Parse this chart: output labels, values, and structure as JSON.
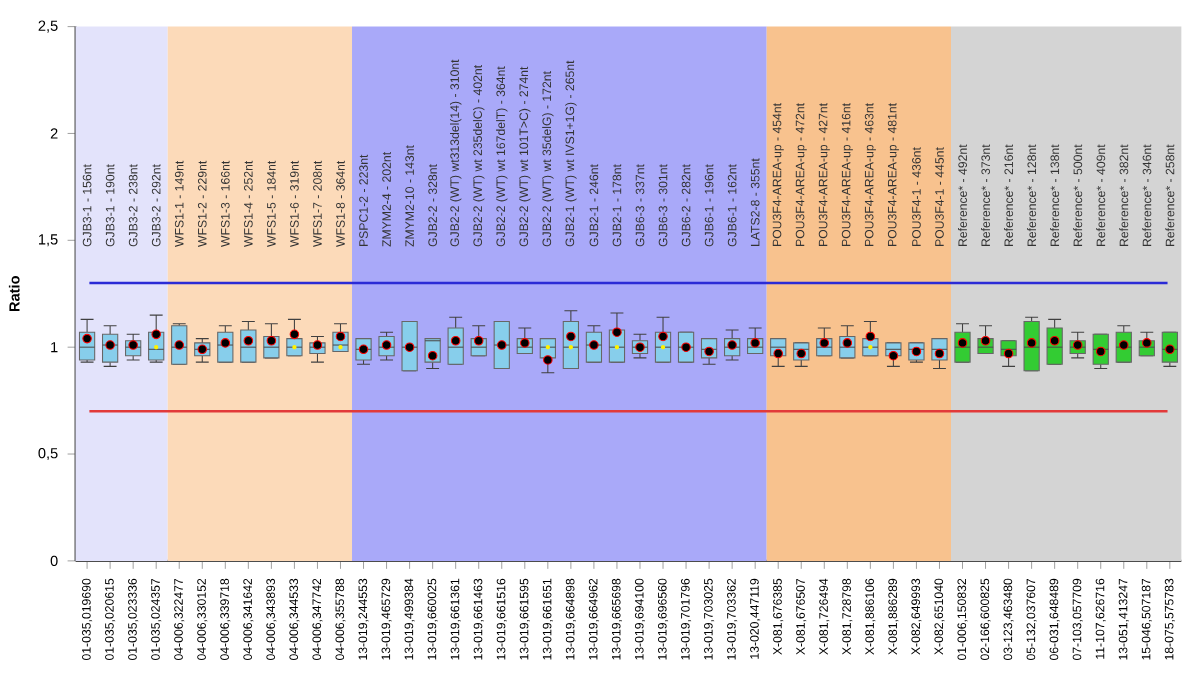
{
  "chart_data": {
    "type": "box",
    "ylabel": "Ratio",
    "categories": [
      "01-035,019690",
      "01-035,020615",
      "01-035,023336",
      "01-035,024357",
      "04-006,322477",
      "04-006,330152",
      "04-006,339718",
      "04-006,341642",
      "04-006,343893",
      "04-006,344533",
      "04-006,347742",
      "04-006,355788",
      "13-019,244553",
      "13-019,465729",
      "13-019,499384",
      "13-019,660025",
      "13-019,661361",
      "13-019,661463",
      "13-019,661516",
      "13-019,661595",
      "13-019,661651",
      "13-019,664898",
      "13-019,664962",
      "13-019,665698",
      "13-019,694100",
      "13-019,696560",
      "13-019,701796",
      "13-019,703025",
      "13-019,703362",
      "13-020,447119",
      "X-081,676385",
      "X-081,676507",
      "X-081,726494",
      "X-081,728798",
      "X-081,886106",
      "X-081,886289",
      "X-082,649993",
      "X-082,651040",
      "01-006,150832",
      "02-166,600825",
      "03-123,463480",
      "05-132,037607",
      "06-031,648489",
      "07-103,057709",
      "11-107,626716",
      "13-051,413247",
      "15-046,507187",
      "18-075,575783"
    ],
    "boxes": [
      {
        "low": 0.93,
        "q1": 0.94,
        "median": 1.0,
        "q3": 1.07,
        "high": 1.13
      },
      {
        "low": 0.91,
        "q1": 0.93,
        "median": 1.01,
        "q3": 1.06,
        "high": 1.1
      },
      {
        "low": 0.94,
        "q1": 0.96,
        "median": 1.0,
        "q3": 1.03,
        "high": 1.06
      },
      {
        "low": 0.93,
        "q1": 0.94,
        "median": 0.99,
        "q3": 1.07,
        "high": 1.15,
        "mean": 1.0
      },
      {
        "low": 0.92,
        "q1": 0.92,
        "median": 1.0,
        "q3": 1.1,
        "high": 1.11
      },
      {
        "low": 0.93,
        "q1": 0.96,
        "median": 0.99,
        "q3": 1.02,
        "high": 1.04
      },
      {
        "low": 0.93,
        "q1": 0.93,
        "median": 1.01,
        "q3": 1.07,
        "high": 1.1
      },
      {
        "low": 0.93,
        "q1": 0.93,
        "median": 1.0,
        "q3": 1.08,
        "high": 1.12
      },
      {
        "low": 0.95,
        "q1": 0.95,
        "median": 1.0,
        "q3": 1.05,
        "high": 1.11
      },
      {
        "low": 0.96,
        "q1": 0.96,
        "median": 1.0,
        "q3": 1.04,
        "high": 1.13,
        "mean": 1.0
      },
      {
        "low": 0.93,
        "q1": 0.97,
        "median": 1.0,
        "q3": 1.02,
        "high": 1.05
      },
      {
        "low": 0.98,
        "q1": 0.98,
        "median": 1.01,
        "q3": 1.07,
        "high": 1.11,
        "mean": 1.0
      },
      {
        "low": 0.92,
        "q1": 0.94,
        "median": 0.99,
        "q3": 1.04,
        "high": 1.04
      },
      {
        "low": 0.94,
        "q1": 0.96,
        "median": 1.0,
        "q3": 1.05,
        "high": 1.07
      },
      {
        "low": 0.89,
        "q1": 0.89,
        "median": 1.0,
        "q3": 1.12,
        "high": 1.12
      },
      {
        "low": 0.9,
        "q1": 0.93,
        "median": 1.03,
        "q3": 1.04,
        "high": 1.04
      },
      {
        "low": 0.92,
        "q1": 0.92,
        "median": 1.0,
        "q3": 1.09,
        "high": 1.14
      },
      {
        "low": 0.96,
        "q1": 0.96,
        "median": 1.0,
        "q3": 1.04,
        "high": 1.1
      },
      {
        "low": 0.9,
        "q1": 0.9,
        "median": 1.01,
        "q3": 1.12,
        "high": 1.12
      },
      {
        "low": 0.97,
        "q1": 0.97,
        "median": 1.0,
        "q3": 1.04,
        "high": 1.09
      },
      {
        "low": 0.88,
        "q1": 0.95,
        "median": 1.0,
        "q3": 1.04,
        "high": 1.04,
        "mean": 1.0
      },
      {
        "low": 0.9,
        "q1": 0.9,
        "median": 1.0,
        "q3": 1.12,
        "high": 1.17,
        "mean": 1.0
      },
      {
        "low": 0.93,
        "q1": 0.93,
        "median": 1.01,
        "q3": 1.07,
        "high": 1.1
      },
      {
        "low": 0.93,
        "q1": 0.93,
        "median": 1.0,
        "q3": 1.08,
        "high": 1.16,
        "mean": 1.0
      },
      {
        "low": 0.95,
        "q1": 0.97,
        "median": 1.0,
        "q3": 1.03,
        "high": 1.06
      },
      {
        "low": 0.93,
        "q1": 0.93,
        "median": 1.0,
        "q3": 1.07,
        "high": 1.14,
        "mean": 1.0
      },
      {
        "low": 0.93,
        "q1": 0.93,
        "median": 1.0,
        "q3": 1.07,
        "high": 1.07
      },
      {
        "low": 0.92,
        "q1": 0.95,
        "median": 0.99,
        "q3": 1.04,
        "high": 1.04
      },
      {
        "low": 0.94,
        "q1": 0.96,
        "median": 1.0,
        "q3": 1.04,
        "high": 1.08
      },
      {
        "low": 0.97,
        "q1": 0.97,
        "median": 1.0,
        "q3": 1.04,
        "high": 1.09
      },
      {
        "low": 0.91,
        "q1": 0.96,
        "median": 1.0,
        "q3": 1.04,
        "high": 1.04
      },
      {
        "low": 0.91,
        "q1": 0.94,
        "median": 0.99,
        "q3": 1.02,
        "high": 1.02
      },
      {
        "low": 0.96,
        "q1": 0.96,
        "median": 1.0,
        "q3": 1.04,
        "high": 1.09
      },
      {
        "low": 0.95,
        "q1": 0.95,
        "median": 1.0,
        "q3": 1.05,
        "high": 1.1
      },
      {
        "low": 0.96,
        "q1": 0.96,
        "median": 1.0,
        "q3": 1.04,
        "high": 1.12,
        "mean": 1.0
      },
      {
        "low": 0.91,
        "q1": 0.96,
        "median": 0.99,
        "q3": 1.02,
        "high": 1.02
      },
      {
        "low": 0.93,
        "q1": 0.94,
        "median": 0.99,
        "q3": 1.02,
        "high": 1.02
      },
      {
        "low": 0.9,
        "q1": 0.94,
        "median": 0.99,
        "q3": 1.04,
        "high": 1.04
      },
      {
        "low": 0.93,
        "q1": 0.93,
        "median": 1.0,
        "q3": 1.07,
        "high": 1.11
      },
      {
        "low": 0.97,
        "q1": 0.97,
        "median": 1.0,
        "q3": 1.04,
        "high": 1.1
      },
      {
        "low": 0.91,
        "q1": 0.96,
        "median": 0.99,
        "q3": 1.03,
        "high": 1.03
      },
      {
        "low": 0.89,
        "q1": 0.89,
        "median": 1.0,
        "q3": 1.12,
        "high": 1.14
      },
      {
        "low": 0.92,
        "q1": 0.92,
        "median": 1.0,
        "q3": 1.09,
        "high": 1.13
      },
      {
        "low": 0.95,
        "q1": 0.97,
        "median": 1.0,
        "q3": 1.03,
        "high": 1.07
      },
      {
        "low": 0.9,
        "q1": 0.92,
        "median": 0.99,
        "q3": 1.06,
        "high": 1.06
      },
      {
        "low": 0.93,
        "q1": 0.93,
        "median": 1.0,
        "q3": 1.07,
        "high": 1.1
      },
      {
        "low": 0.96,
        "q1": 0.96,
        "median": 1.0,
        "q3": 1.03,
        "high": 1.07
      },
      {
        "low": 0.91,
        "q1": 0.93,
        "median": 0.99,
        "q3": 1.07,
        "high": 1.07
      }
    ],
    "colors": [
      "#87ceeb",
      "#87ceeb",
      "#87ceeb",
      "#87ceeb",
      "#87ceeb",
      "#87ceeb",
      "#87ceeb",
      "#87ceeb",
      "#87ceeb",
      "#87ceeb",
      "#87ceeb",
      "#87ceeb",
      "#87ceeb",
      "#87ceeb",
      "#87ceeb",
      "#87ceeb",
      "#87ceeb",
      "#87ceeb",
      "#87ceeb",
      "#87ceeb",
      "#87ceeb",
      "#87ceeb",
      "#87ceeb",
      "#87ceeb",
      "#87ceeb",
      "#87ceeb",
      "#87ceeb",
      "#87ceeb",
      "#87ceeb",
      "#87ceeb",
      "#87ceeb",
      "#87ceeb",
      "#87ceeb",
      "#87ceeb",
      "#87ceeb",
      "#87ceeb",
      "#87ceeb",
      "#87ceeb",
      "#33cc33",
      "#33cc33",
      "#33cc33",
      "#33cc33",
      "#33cc33",
      "#33cc33",
      "#33cc33",
      "#33cc33",
      "#33cc33",
      "#33cc33"
    ],
    "series": [
      {
        "type": "scatter",
        "color": "#000000",
        "marker": "circle",
        "x": [
          "01-035,019690",
          "01-035,020615",
          "01-035,023336",
          "01-035,024357",
          "04-006,322477",
          "04-006,330152",
          "04-006,339718",
          "04-006,341642",
          "04-006,343893",
          "04-006,344533",
          "04-006,347742",
          "04-006,355788",
          "13-019,244553",
          "13-019,465729",
          "13-019,499384",
          "13-019,660025",
          "13-019,661361",
          "13-019,661463",
          "13-019,661516",
          "13-019,661595",
          "13-019,661651",
          "13-019,664898",
          "13-019,664962",
          "13-019,665698",
          "13-019,694100",
          "13-019,696560",
          "13-019,701796",
          "13-019,703025",
          "13-019,703362",
          "13-020,447119",
          "X-081,676385",
          "X-081,676507",
          "X-081,726494",
          "X-081,728798",
          "X-081,886106",
          "X-081,886289",
          "X-082,649993",
          "X-082,651040",
          "01-006,150832",
          "02-166,600825",
          "03-123,463480",
          "05-132,037607",
          "06-031,648489",
          "07-103,057709",
          "11-107,626716",
          "13-051,413247",
          "15-046,507187",
          "18-075,575783"
        ],
        "values": [
          1.04,
          1.01,
          1.01,
          1.06,
          1.01,
          0.99,
          1.02,
          1.03,
          1.03,
          1.06,
          1.01,
          1.05,
          0.99,
          1.01,
          1.0,
          0.96,
          1.03,
          1.03,
          1.01,
          1.02,
          0.94,
          1.05,
          1.01,
          1.07,
          1.0,
          1.05,
          1.0,
          0.98,
          1.01,
          1.02,
          0.97,
          0.97,
          1.02,
          1.02,
          1.05,
          0.96,
          0.98,
          0.97,
          1.02,
          1.03,
          0.97,
          1.02,
          1.03,
          1.01,
          0.98,
          1.01,
          1.02,
          0.99
        ]
      }
    ],
    "ylim": [
      0,
      2.5
    ],
    "yticks": [
      0,
      {
        "value": 0.5,
        "label": "0,5"
      },
      1,
      {
        "value": 1.5,
        "label": "1,5"
      },
      2,
      {
        "value": 2.5,
        "label": "2,5"
      }
    ],
    "ref_lines": [
      {
        "axis": "y",
        "value": 1.3,
        "color": "#2b2bd6"
      },
      {
        "axis": "y",
        "value": 0.7,
        "color": "#e23a3a"
      }
    ],
    "bands": [
      {
        "axis": "x",
        "from": "01-035,019690",
        "to": "01-035,024357",
        "color": "#e3e3fb"
      },
      {
        "axis": "x",
        "from": "04-006,322477",
        "to": "04-006,355788",
        "color": "#fcdab9"
      },
      {
        "axis": "x",
        "from": "13-019,244553",
        "to": "13-020,447119",
        "color": "#a9a9f9"
      },
      {
        "axis": "x",
        "from": "X-081,676385",
        "to": "X-082,651040",
        "color": "#f8c28e"
      },
      {
        "axis": "x",
        "from": "01-006,150832",
        "to": "18-075,575783",
        "color": "#d4d4d4"
      }
    ],
    "annotations": [
      "GJB3-1 - 156nt",
      "GJB3-1 - 190nt",
      "GJB3-2 - 238nt",
      "GJB3-2 - 292nt",
      "WFS1-1 - 149nt",
      "WFS1-2 - 229nt",
      "WFS1-3 - 166nt",
      "WFS1-4 - 252nt",
      "WFS1-5 - 184nt",
      "WFS1-6 - 319nt",
      "WFS1-7 - 208nt",
      "WFS1-8 - 364nt",
      "PSPC1-2 - 223nt",
      "ZMYM2-4 - 202nt",
      "ZMYM2-10 - 143nt",
      "GJB2-2 - 328nt",
      "GJB2-2 (WT) wt313del(14) - 310nt",
      "GJB2-2 (WT) wt 235delC) - 402nt",
      "GJB2-2 (WT) wt 167delT) - 364nt",
      "GJB2-2 (WT) wt 101T>C) - 274nt",
      "GJB2-2 (WT) wt 35delG) - 172nt",
      "GJB2-1 (WT) wt IVS1+1G) - 265nt",
      "GJB2-1 - 246nt",
      "GJB2-1 - 178nt",
      "GJB6-3 - 337nt",
      "GJB6-3 - 301nt",
      "GJB6-2 - 282nt",
      "GJB6-1 - 196nt",
      "GJB6-1 - 162nt",
      "LATS2-8 - 355nt",
      "POU3F4-AREA-up - 454nt",
      "POU3F4-AREA-up - 472nt",
      "POU3F4-AREA-up - 427nt",
      "POU3F4-AREA-up - 416nt",
      "POU3F4-AREA-up - 463nt",
      "POU3F4-AREA-up - 481nt",
      "POU3F4-1 - 436nt",
      "POU3F4-1 - 445nt",
      "Reference* - 492nt",
      "Reference* - 373nt",
      "Reference* - 216nt",
      "Reference* - 128nt",
      "Reference* - 138nt",
      "Reference* - 500nt",
      "Reference* - 409nt",
      "Reference* - 382nt",
      "Reference* - 346nt",
      "Reference* - 258nt"
    ]
  }
}
